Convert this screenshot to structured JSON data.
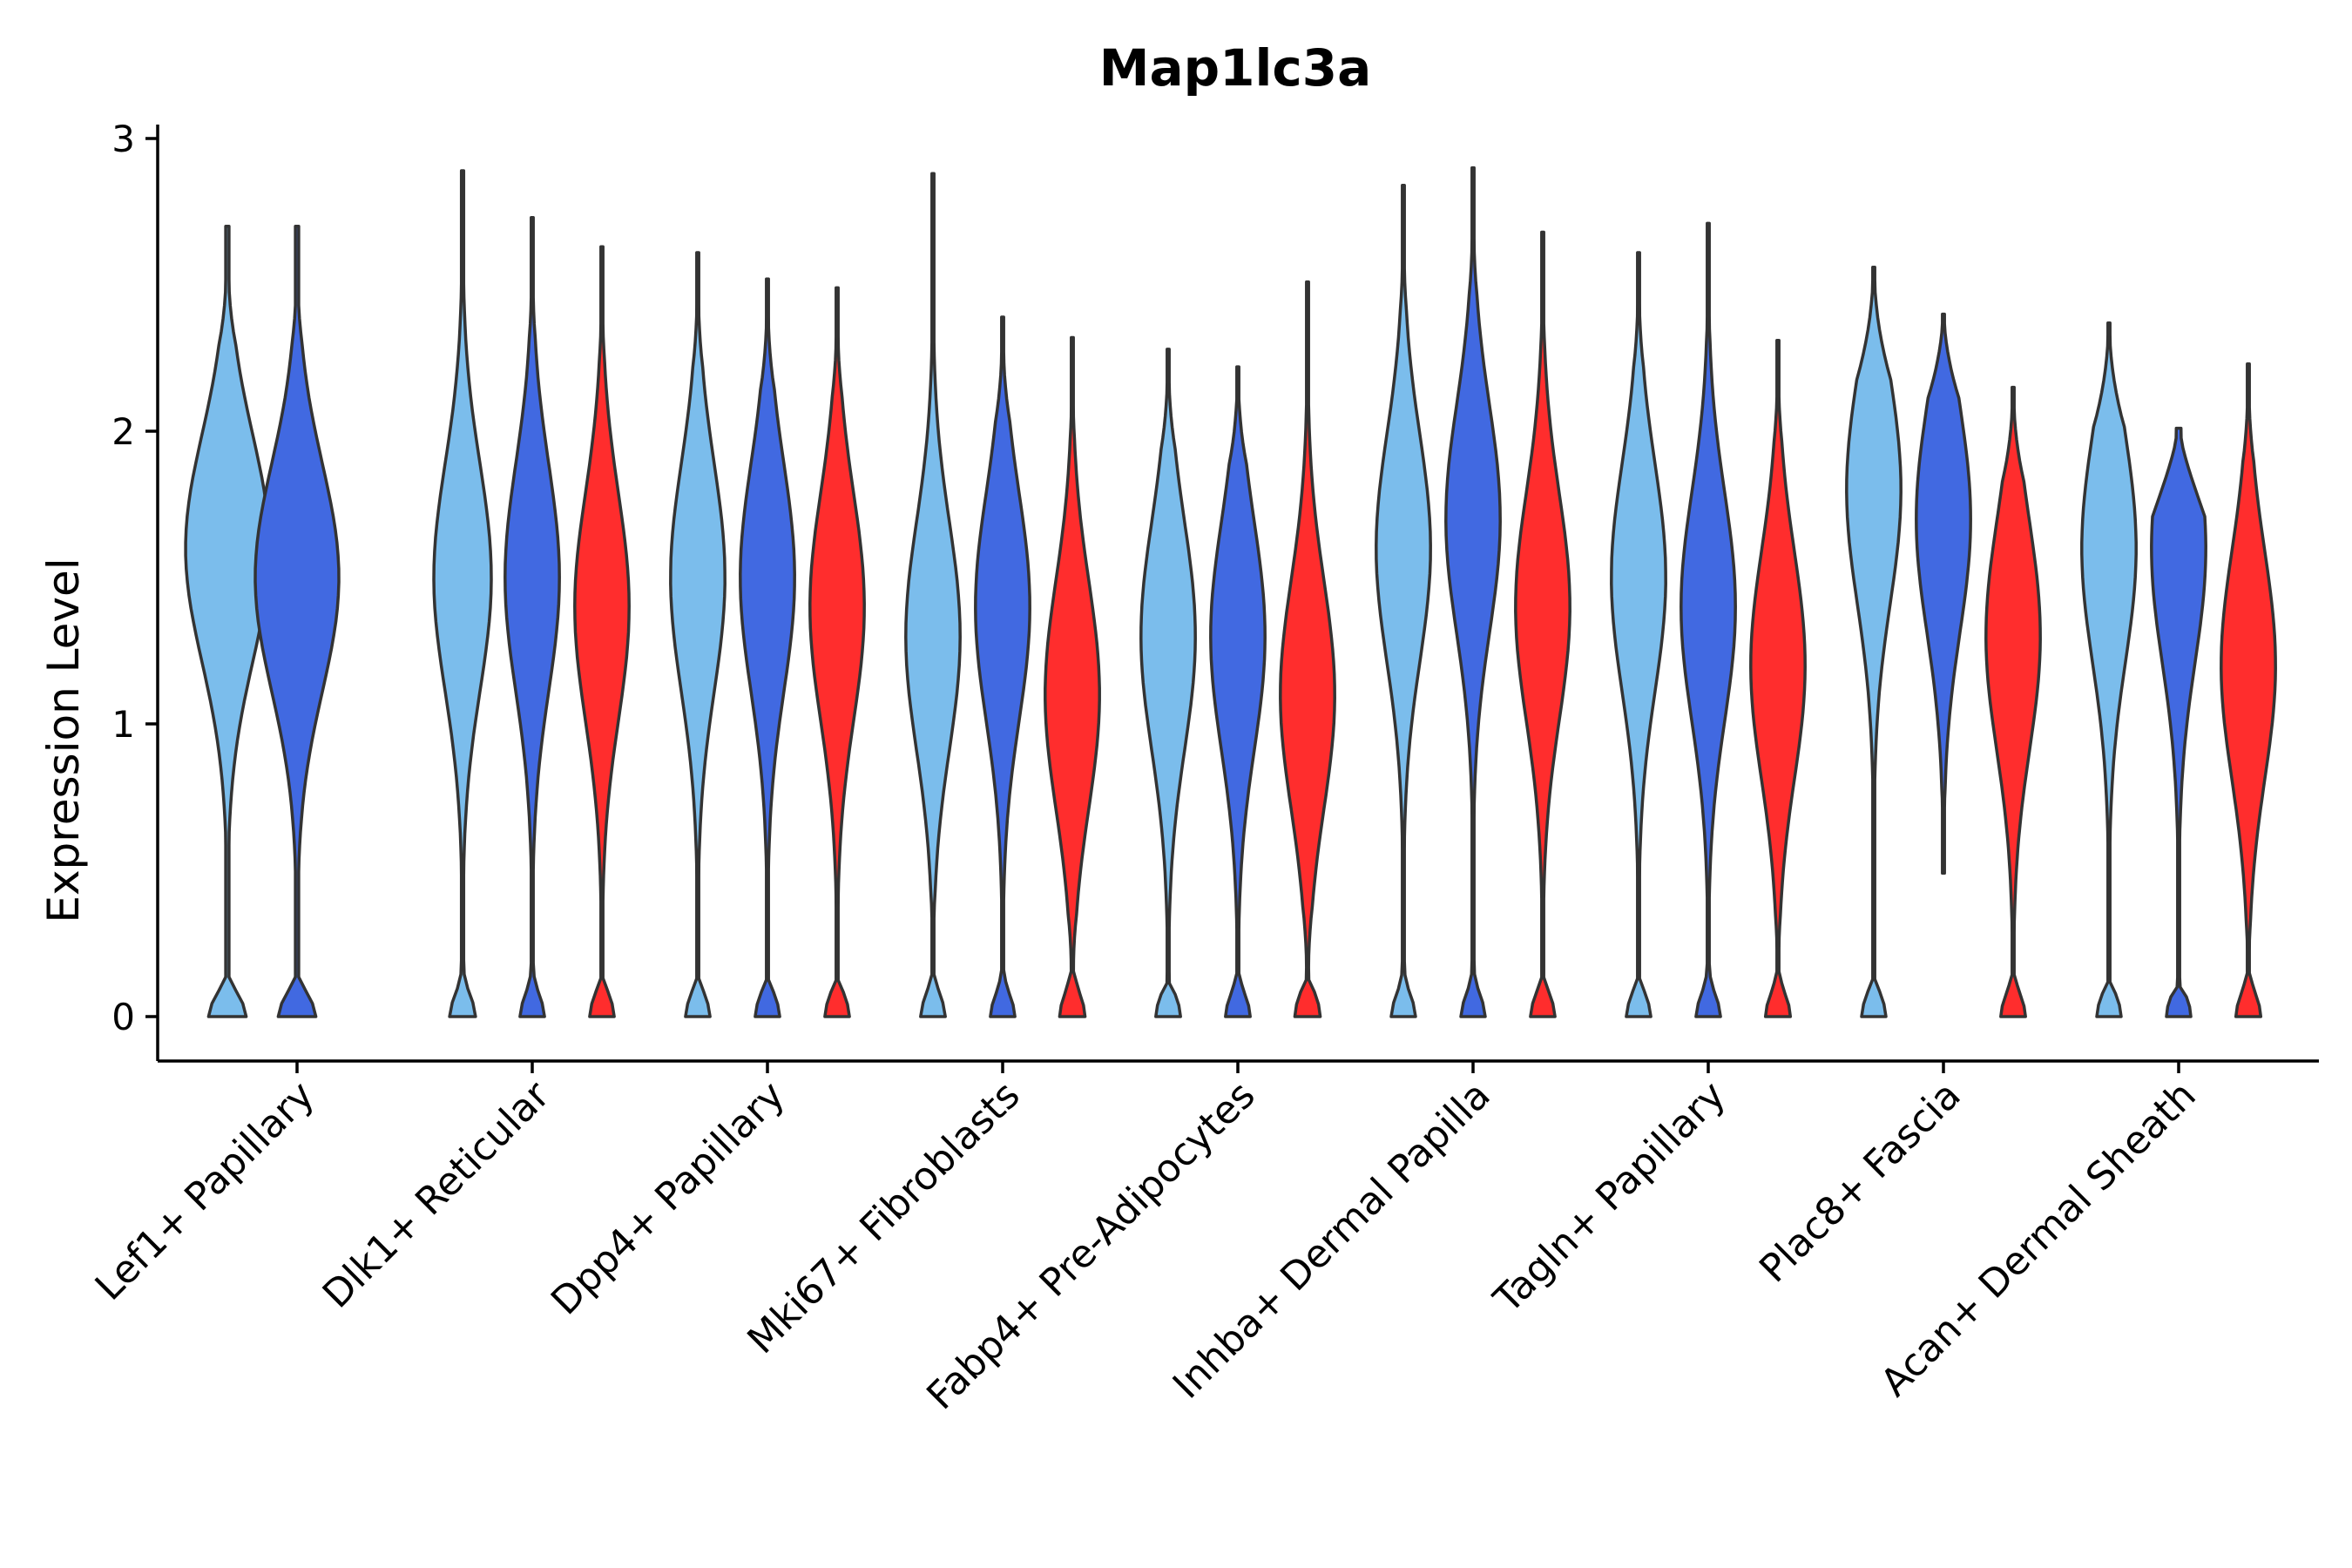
{
  "chart_data": {
    "type": "violin",
    "title": "Map1lc3a",
    "xlabel": "",
    "ylabel": "Expression Level",
    "ylim": [
      -0.15,
      3.05
    ],
    "yticks": [
      "0",
      "1",
      "2",
      "3"
    ],
    "grid": false,
    "legend": "none",
    "series_colors": [
      "#7bbdec",
      "#4169e1",
      "#ff2d2d"
    ],
    "categories": [
      "Lef1+ Papillary",
      "Dlk1+ Reticular",
      "Dpp4+ Papillary",
      "Mki67+ Fibroblasts",
      "Fabp4+ Pre-Adipocytes",
      "Inhba+ Dermal Papilla",
      "Tagln+ Papillary",
      "Plac8+ Fascia",
      "Acan+ Dermal Sheath"
    ],
    "violins": [
      {
        "category": 0,
        "series": 0,
        "min": 0,
        "max": 2.7,
        "peak": 1.6,
        "width": 0.8
      },
      {
        "category": 0,
        "series": 1,
        "min": 0,
        "max": 2.7,
        "peak": 1.5,
        "width": 0.8
      },
      {
        "category": 1,
        "series": 0,
        "min": 0,
        "max": 2.89,
        "peak": 1.5,
        "width": 0.55
      },
      {
        "category": 1,
        "series": 1,
        "min": 0,
        "max": 2.73,
        "peak": 1.5,
        "width": 0.52
      },
      {
        "category": 1,
        "series": 2,
        "min": 0,
        "max": 2.63,
        "peak": 1.4,
        "width": 0.52
      },
      {
        "category": 2,
        "series": 0,
        "min": 0,
        "max": 2.61,
        "peak": 1.5,
        "width": 0.52
      },
      {
        "category": 2,
        "series": 1,
        "min": 0,
        "max": 2.52,
        "peak": 1.5,
        "width": 0.52
      },
      {
        "category": 2,
        "series": 2,
        "min": 0,
        "max": 2.49,
        "peak": 1.4,
        "width": 0.52
      },
      {
        "category": 3,
        "series": 0,
        "min": 0,
        "max": 2.88,
        "peak": 1.3,
        "width": 0.52
      },
      {
        "category": 3,
        "series": 1,
        "min": 0,
        "max": 2.39,
        "peak": 1.4,
        "width": 0.52
      },
      {
        "category": 3,
        "series": 2,
        "min": 0,
        "max": 2.32,
        "peak": 1.1,
        "width": 0.52
      },
      {
        "category": 4,
        "series": 0,
        "min": 0,
        "max": 2.28,
        "peak": 1.3,
        "width": 0.52
      },
      {
        "category": 4,
        "series": 1,
        "min": 0,
        "max": 2.22,
        "peak": 1.3,
        "width": 0.52
      },
      {
        "category": 4,
        "series": 2,
        "min": 0,
        "max": 2.51,
        "peak": 1.1,
        "width": 0.52
      },
      {
        "category": 5,
        "series": 0,
        "min": 0,
        "max": 2.84,
        "peak": 1.6,
        "width": 0.52
      },
      {
        "category": 5,
        "series": 1,
        "min": 0,
        "max": 2.9,
        "peak": 1.7,
        "width": 0.52
      },
      {
        "category": 5,
        "series": 2,
        "min": 0,
        "max": 2.68,
        "peak": 1.4,
        "width": 0.52
      },
      {
        "category": 6,
        "series": 0,
        "min": 0,
        "max": 2.61,
        "peak": 1.5,
        "width": 0.52
      },
      {
        "category": 6,
        "series": 1,
        "min": 0,
        "max": 2.71,
        "peak": 1.4,
        "width": 0.52
      },
      {
        "category": 6,
        "series": 2,
        "min": 0,
        "max": 2.31,
        "peak": 1.2,
        "width": 0.52
      },
      {
        "category": 7,
        "series": 0,
        "min": 0,
        "max": 2.56,
        "peak": 1.8,
        "width": 0.52
      },
      {
        "category": 7,
        "series": 1,
        "min": 0.49,
        "max": 2.4,
        "peak": 1.7,
        "width": 0.52
      },
      {
        "category": 7,
        "series": 2,
        "min": 0,
        "max": 2.15,
        "peak": 1.3,
        "width": 0.52
      },
      {
        "category": 8,
        "series": 0,
        "min": 0,
        "max": 2.37,
        "peak": 1.6,
        "width": 0.52
      },
      {
        "category": 8,
        "series": 1,
        "min": 0,
        "max": 2.01,
        "peak": 1.6,
        "width": 0.52
      },
      {
        "category": 8,
        "series": 2,
        "min": 0,
        "max": 2.23,
        "peak": 1.2,
        "width": 0.52
      }
    ]
  }
}
